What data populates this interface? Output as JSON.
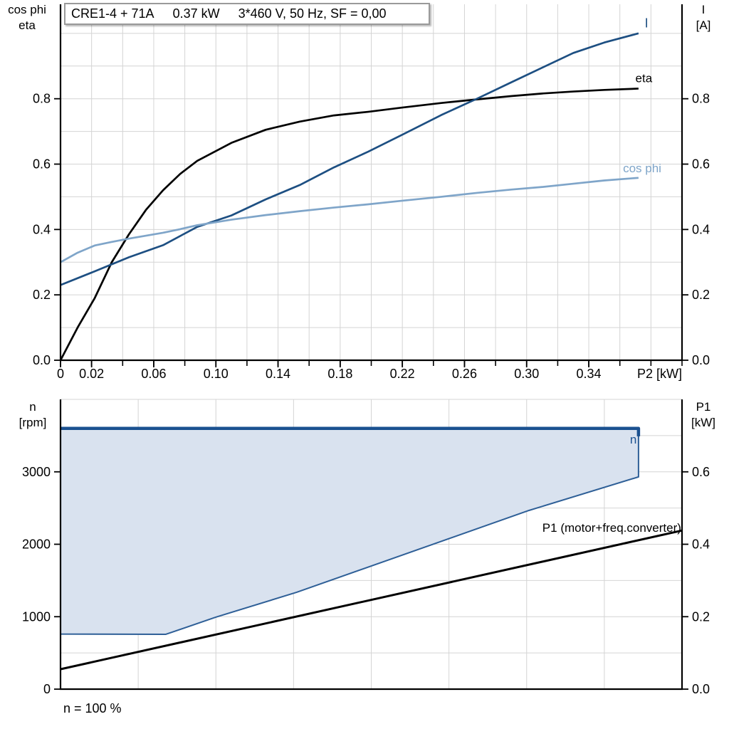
{
  "colors": {
    "black": "#000000",
    "dark_blue": "#1d4f82",
    "n_line_blue": "#1b5190",
    "light_blue": "#7fa5c9",
    "region_fill": "#d9e2ef",
    "region_border": "#2e5f97",
    "grid": "#d4d4d4",
    "axis": "#000000",
    "title_border": "#9a9a9a"
  },
  "header": {
    "left_axis_line1": "cos phi",
    "left_axis_line2": "eta",
    "right_axis_line1": "I",
    "right_axis_line2": "[A]",
    "title_segments": [
      "CRE1-4 + 71A",
      "0.37 kW",
      "3*460 V, 50 Hz, SF = 0,00"
    ]
  },
  "bottom_header": {
    "left_axis_line1": "n",
    "left_axis_line2": "[rpm]",
    "right_axis_line1": "P1",
    "right_axis_line2": "[kW]"
  },
  "footer": {
    "text": "n = 100 %"
  },
  "chart_data": [
    {
      "type": "line",
      "title": "CRE1-4 + 71A  0.37 kW  3*460 V, 50 Hz, SF = 0,00",
      "xlabel": "P2 [kW]",
      "ylabel_left": "cos phi / eta",
      "ylabel_right": "I [A]",
      "xlim": [
        0,
        0.4
      ],
      "ylim": [
        0,
        1.089
      ],
      "grid": true,
      "x_grid_step": 0.02,
      "y_grid_step": 0.1,
      "x_ticks": {
        "values": [
          0,
          0.02,
          0.06,
          0.1,
          0.14,
          0.18,
          0.22,
          0.26,
          0.3,
          0.34
        ],
        "labels": [
          "0",
          "0.02",
          "0.06",
          "0.10",
          "0.14",
          "0.18",
          "0.22",
          "0.26",
          "0.30",
          "0.34"
        ]
      },
      "y_ticks": {
        "values": [
          0,
          0.2,
          0.4,
          0.6,
          0.8
        ],
        "labels": [
          "0.0",
          "0.2",
          "0.4",
          "0.6",
          "0.8"
        ]
      },
      "series": [
        {
          "name": "eta",
          "color_key": "black",
          "width": 2.7,
          "points": [
            [
              0,
              0
            ],
            [
              0.011,
              0.1
            ],
            [
              0.022,
              0.19
            ],
            [
              0.033,
              0.3
            ],
            [
              0.044,
              0.385
            ],
            [
              0.055,
              0.46
            ],
            [
              0.066,
              0.52
            ],
            [
              0.077,
              0.57
            ],
            [
              0.088,
              0.61
            ],
            [
              0.11,
              0.665
            ],
            [
              0.132,
              0.705
            ],
            [
              0.154,
              0.73
            ],
            [
              0.176,
              0.749
            ],
            [
              0.198,
              0.76
            ],
            [
              0.22,
              0.773
            ],
            [
              0.245,
              0.787
            ],
            [
              0.268,
              0.798
            ],
            [
              0.29,
              0.808
            ],
            [
              0.31,
              0.816
            ],
            [
              0.33,
              0.822
            ],
            [
              0.35,
              0.827
            ],
            [
              0.372,
              0.831
            ]
          ]
        },
        {
          "name": "I",
          "color_key": "dark_blue",
          "width": 2.7,
          "points": [
            [
              0,
              0.23
            ],
            [
              0.022,
              0.272
            ],
            [
              0.044,
              0.315
            ],
            [
              0.066,
              0.352
            ],
            [
              0.088,
              0.408
            ],
            [
              0.11,
              0.443
            ],
            [
              0.132,
              0.492
            ],
            [
              0.154,
              0.536
            ],
            [
              0.176,
              0.59
            ],
            [
              0.198,
              0.638
            ],
            [
              0.22,
              0.69
            ],
            [
              0.245,
              0.75
            ],
            [
              0.268,
              0.8
            ],
            [
              0.29,
              0.85
            ],
            [
              0.31,
              0.895
            ],
            [
              0.33,
              0.94
            ],
            [
              0.35,
              0.972
            ],
            [
              0.372,
              1.0
            ]
          ]
        },
        {
          "name": "cos phi",
          "color_key": "light_blue",
          "width": 2.7,
          "points": [
            [
              0,
              0.3
            ],
            [
              0.011,
              0.329
            ],
            [
              0.022,
              0.351
            ],
            [
              0.033,
              0.362
            ],
            [
              0.044,
              0.372
            ],
            [
              0.055,
              0.381
            ],
            [
              0.066,
              0.39
            ],
            [
              0.077,
              0.401
            ],
            [
              0.088,
              0.413
            ],
            [
              0.11,
              0.43
            ],
            [
              0.132,
              0.444
            ],
            [
              0.154,
              0.456
            ],
            [
              0.176,
              0.467
            ],
            [
              0.198,
              0.477
            ],
            [
              0.22,
              0.488
            ],
            [
              0.245,
              0.5
            ],
            [
              0.268,
              0.512
            ],
            [
              0.29,
              0.522
            ],
            [
              0.31,
              0.53
            ],
            [
              0.33,
              0.54
            ],
            [
              0.35,
              0.55
            ],
            [
              0.372,
              0.558
            ]
          ]
        }
      ],
      "annotations": [
        {
          "text": "I",
          "x": 0.376,
          "y": 1.031,
          "color_key": "dark_blue",
          "anchor": "start",
          "size": 18
        },
        {
          "text": "eta",
          "x": 0.37,
          "y": 0.862,
          "color_key": "black",
          "anchor": "start",
          "size": 17
        },
        {
          "text": "cos phi",
          "x": 0.362,
          "y": 0.587,
          "color_key": "light_blue",
          "anchor": "start",
          "size": 17
        }
      ]
    },
    {
      "type": "area",
      "title": "Speed range and input power",
      "xlabel": "",
      "ylabel_left": "n [rpm]",
      "ylabel_right": "P1 [kW]",
      "xlim": [
        0,
        0.4
      ],
      "ylim_left": [
        0,
        4000
      ],
      "ylim_right": [
        0,
        0.8
      ],
      "grid": true,
      "x_grid_step": 0.05,
      "y_grid_step_rpm": 500,
      "y_ticks_left": {
        "values": [
          0,
          1000,
          2000,
          3000
        ],
        "labels": [
          "0",
          "1000",
          "2000",
          "3000"
        ]
      },
      "y_ticks_right": {
        "values": [
          0,
          0.2,
          0.4,
          0.6
        ],
        "labels": [
          "0.0",
          "0.2",
          "0.4",
          "0.6"
        ]
      },
      "speed_region": {
        "fill_key": "region_fill",
        "border_key": "region_border",
        "border_width": 2,
        "polygon": [
          [
            0,
            760
          ],
          [
            0,
            3600
          ],
          [
            0.372,
            3600
          ],
          [
            0.372,
            2930
          ],
          [
            0.3015,
            2467
          ],
          [
            0.152,
            1337
          ],
          [
            0.0999,
            993
          ],
          [
            0.0678,
            757
          ]
        ]
      },
      "n_max_line": {
        "name": "n",
        "color_key": "n_line_blue",
        "width": 4.5,
        "points": [
          [
            0,
            3600
          ],
          [
            0.372,
            3600
          ],
          [
            0.372,
            3490
          ]
        ]
      },
      "p1_line": {
        "name": "P1 (motor+freq.converter)",
        "color_key": "black",
        "width": 3,
        "axis": "right",
        "points": [
          [
            0,
            0.055
          ],
          [
            0.4,
            0.438
          ]
        ]
      },
      "annotations": [
        {
          "text": "n",
          "x": 0.3665,
          "y": 3445,
          "color_key": "n_line_blue",
          "anchor": "start",
          "size": 17
        },
        {
          "text": "P1 (motor+freq.converter)",
          "x": 0.3995,
          "y": 2225,
          "color_key": "black",
          "anchor": "end",
          "size": 17
        }
      ]
    }
  ]
}
